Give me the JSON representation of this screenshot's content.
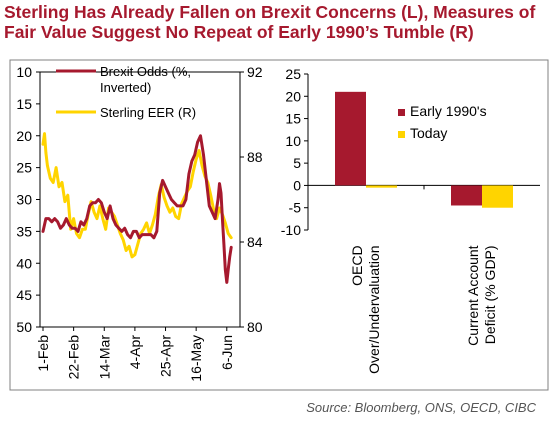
{
  "title_lines": [
    "Sterling Has Already Fallen on Brexit Concerns (L), Measures of",
    "Fair Value Suggest No Repeat of Early 1990’s Tumble (R)"
  ],
  "source": "Source: Bloomberg, ONS, OECD, CIBC",
  "colors": {
    "title": "#a6192e",
    "red": "#a6192e",
    "yellow": "#ffd400",
    "axis": "#000000"
  },
  "chart_data": [
    {
      "type": "line",
      "title": "",
      "x_tick_labels": [
        "1-Feb",
        "22-Feb",
        "14-Mar",
        "4-Apr",
        "25-Apr",
        "16-May",
        "6-Jun"
      ],
      "x_range_days": [
        0,
        133
      ],
      "y_left": {
        "ticks": [
          10,
          15,
          20,
          25,
          30,
          35,
          40,
          45,
          50
        ],
        "range": [
          10,
          50
        ],
        "inverted": true
      },
      "y_right": {
        "ticks": [
          80,
          84,
          88,
          92
        ],
        "range": [
          80,
          92
        ]
      },
      "legend": "top-right",
      "series": [
        {
          "name": "Brexit Odds (%, Inverted)",
          "axis": "left",
          "color": "#a6192e",
          "points": [
            [
              0,
              35
            ],
            [
              2,
              33
            ],
            [
              4,
              33
            ],
            [
              6,
              33.5
            ],
            [
              8,
              33
            ],
            [
              10,
              33.5
            ],
            [
              12,
              34.5
            ],
            [
              14,
              34
            ],
            [
              16,
              33
            ],
            [
              18,
              34
            ],
            [
              20,
              34.5
            ],
            [
              22,
              34.5
            ],
            [
              24,
              35
            ],
            [
              26,
              33.5
            ],
            [
              28,
              34
            ],
            [
              30,
              33
            ],
            [
              32,
              31
            ],
            [
              34,
              30.5
            ],
            [
              36,
              30.5
            ],
            [
              38,
              30
            ],
            [
              40,
              30.5
            ],
            [
              42,
              32
            ],
            [
              44,
              33
            ],
            [
              46,
              31
            ],
            [
              48,
              33
            ],
            [
              50,
              34
            ],
            [
              52,
              34.5
            ],
            [
              54,
              35
            ],
            [
              56,
              34.5
            ],
            [
              58,
              35.5
            ],
            [
              60,
              36
            ],
            [
              62,
              35
            ],
            [
              64,
              35
            ],
            [
              66,
              36
            ],
            [
              68,
              35.5
            ],
            [
              70,
              35.5
            ],
            [
              72,
              35.5
            ],
            [
              74,
              35.5
            ],
            [
              76,
              36
            ],
            [
              78,
              35
            ],
            [
              80,
              29
            ],
            [
              82,
              27
            ],
            [
              84,
              28
            ],
            [
              86,
              29
            ],
            [
              88,
              30
            ],
            [
              90,
              30.5
            ],
            [
              92,
              31
            ],
            [
              94,
              31
            ],
            [
              96,
              31
            ],
            [
              98,
              30
            ],
            [
              100,
              26
            ],
            [
              102,
              24
            ],
            [
              104,
              23
            ],
            [
              106,
              21
            ],
            [
              108,
              20
            ],
            [
              110,
              23
            ],
            [
              112,
              27
            ],
            [
              114,
              31
            ],
            [
              116,
              32
            ],
            [
              118,
              33
            ],
            [
              120,
              30
            ],
            [
              121,
              27.5
            ],
            [
              122,
              29
            ],
            [
              123,
              33
            ],
            [
              124,
              37
            ],
            [
              125,
              41
            ],
            [
              126,
              43
            ],
            [
              127,
              41
            ],
            [
              128,
              39
            ],
            [
              129,
              37.5
            ]
          ]
        },
        {
          "name": "Sterling EER (R)",
          "axis": "right",
          "color": "#ffd400",
          "points": [
            [
              0,
              88.6
            ],
            [
              1,
              89.1
            ],
            [
              2,
              88.2
            ],
            [
              3,
              87.6
            ],
            [
              5,
              87.0
            ],
            [
              7,
              86.8
            ],
            [
              9,
              87.5
            ],
            [
              11,
              86.6
            ],
            [
              13,
              86.8
            ],
            [
              15,
              85.9
            ],
            [
              17,
              86.2
            ],
            [
              19,
              84.6
            ],
            [
              21,
              85.1
            ],
            [
              23,
              84.4
            ],
            [
              25,
              84.2
            ],
            [
              27,
              84.6
            ],
            [
              29,
              84.6
            ],
            [
              31,
              85.3
            ],
            [
              33,
              85.9
            ],
            [
              35,
              85.4
            ],
            [
              37,
              85.1
            ],
            [
              39,
              85.7
            ],
            [
              41,
              85.1
            ],
            [
              43,
              84.6
            ],
            [
              45,
              85.6
            ],
            [
              47,
              85.4
            ],
            [
              49,
              85.2
            ],
            [
              51,
              84.8
            ],
            [
              53,
              84.4
            ],
            [
              55,
              84.1
            ],
            [
              57,
              83.6
            ],
            [
              59,
              83.8
            ],
            [
              61,
              83.3
            ],
            [
              63,
              83.4
            ],
            [
              65,
              83.9
            ],
            [
              67,
              84.4
            ],
            [
              69,
              84.6
            ],
            [
              71,
              84.9
            ],
            [
              73,
              84.4
            ],
            [
              75,
              84.8
            ],
            [
              77,
              85.3
            ],
            [
              79,
              86.1
            ],
            [
              81,
              86.7
            ],
            [
              83,
              86.1
            ],
            [
              85,
              85.7
            ],
            [
              87,
              85.4
            ],
            [
              89,
              85.6
            ],
            [
              91,
              85.2
            ],
            [
              93,
              85.1
            ],
            [
              95,
              85.8
            ],
            [
              97,
              86.1
            ],
            [
              99,
              86.4
            ],
            [
              101,
              86.6
            ],
            [
              103,
              87.3
            ],
            [
              105,
              87.9
            ],
            [
              107,
              88.3
            ],
            [
              109,
              87.6
            ],
            [
              111,
              87.1
            ],
            [
              113,
              86.8
            ],
            [
              115,
              86.2
            ],
            [
              117,
              85.5
            ],
            [
              119,
              85.1
            ],
            [
              121,
              85.6
            ],
            [
              123,
              85.3
            ],
            [
              125,
              84.9
            ],
            [
              127,
              84.4
            ],
            [
              129,
              84.2
            ]
          ]
        }
      ]
    },
    {
      "type": "bar",
      "title": "",
      "categories": [
        "OECD Over/Undervaluation",
        "Current Account Deficit (% GDP)"
      ],
      "y_ticks": [
        25,
        20,
        15,
        10,
        5,
        0,
        -5,
        -10
      ],
      "ylim": [
        -10,
        25
      ],
      "legend": "top-right",
      "series": [
        {
          "name": "Early 1990's",
          "color": "#a6192e",
          "values": [
            21,
            -4.5
          ]
        },
        {
          "name": "Today",
          "color": "#ffd400",
          "values": [
            -0.5,
            -5
          ]
        }
      ]
    }
  ]
}
